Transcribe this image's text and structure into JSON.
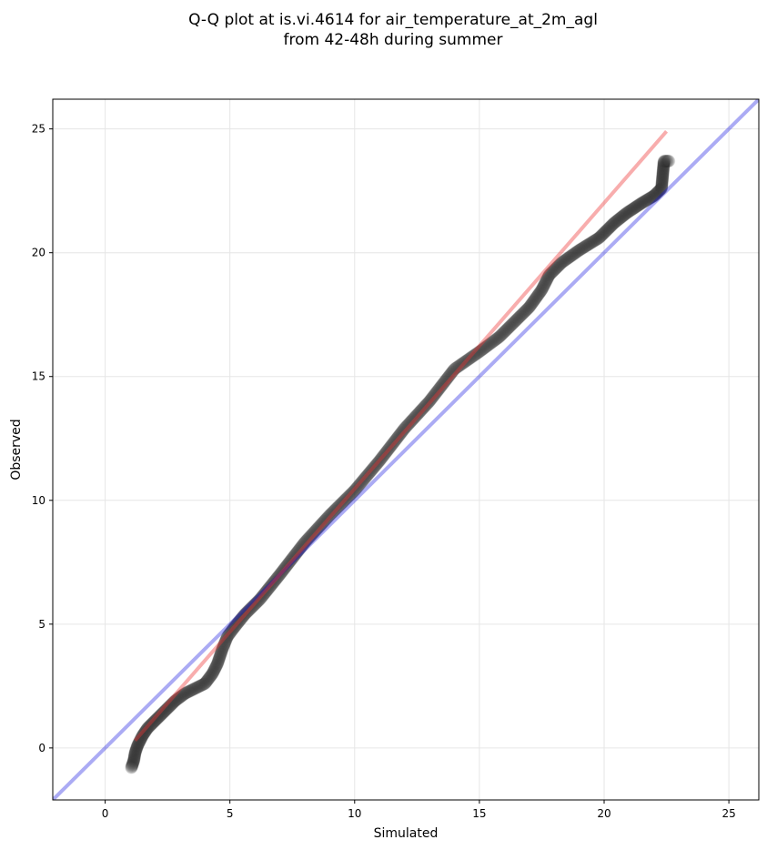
{
  "chart_data": {
    "type": "scatter",
    "title_lines": [
      "Q-Q plot at is.vi.4614 for air_temperature_at_2m_agl",
      "from 42-48h during summer"
    ],
    "xlabel": "Simulated",
    "ylabel": "Observed",
    "xlim": [
      -2.1,
      26.2
    ],
    "ylim": [
      -2.1,
      26.2
    ],
    "xticks": [
      0,
      5,
      10,
      15,
      20,
      25
    ],
    "yticks": [
      0,
      5,
      10,
      15,
      20,
      25
    ],
    "grid": true,
    "reference_line": {
      "name": "1:1",
      "color": "#0000dd",
      "points": [
        [
          -2.1,
          -2.1
        ],
        [
          26.2,
          26.2
        ]
      ]
    },
    "fit_line": {
      "color": "#ee3333",
      "points": [
        [
          1.2,
          0.3
        ],
        [
          22.5,
          24.9
        ]
      ]
    },
    "point_color": "#333333",
    "quantile_curve": [
      [
        1.05,
        -0.8
      ],
      [
        1.15,
        -0.5
      ],
      [
        1.2,
        -0.2
      ],
      [
        1.3,
        0.1
      ],
      [
        1.4,
        0.3
      ],
      [
        1.5,
        0.5
      ],
      [
        1.7,
        0.8
      ],
      [
        1.9,
        1.0
      ],
      [
        2.2,
        1.3
      ],
      [
        2.5,
        1.6
      ],
      [
        2.8,
        1.9
      ],
      [
        3.2,
        2.2
      ],
      [
        3.6,
        2.4
      ],
      [
        4.0,
        2.6
      ],
      [
        4.3,
        3.0
      ],
      [
        4.5,
        3.4
      ],
      [
        4.7,
        4.0
      ],
      [
        4.9,
        4.5
      ],
      [
        5.2,
        4.9
      ],
      [
        5.6,
        5.4
      ],
      [
        6.2,
        6.0
      ],
      [
        7.0,
        7.0
      ],
      [
        8.0,
        8.3
      ],
      [
        9.0,
        9.4
      ],
      [
        10.0,
        10.4
      ],
      [
        11.0,
        11.6
      ],
      [
        12.0,
        12.9
      ],
      [
        13.0,
        14.0
      ],
      [
        14.0,
        15.3
      ],
      [
        15.0,
        16.0
      ],
      [
        15.8,
        16.6
      ],
      [
        16.5,
        17.3
      ],
      [
        17.0,
        17.8
      ],
      [
        17.5,
        18.5
      ],
      [
        17.8,
        19.1
      ],
      [
        18.3,
        19.6
      ],
      [
        19.0,
        20.1
      ],
      [
        19.8,
        20.6
      ],
      [
        20.4,
        21.2
      ],
      [
        20.9,
        21.6
      ],
      [
        21.5,
        22.0
      ],
      [
        22.0,
        22.3
      ],
      [
        22.3,
        22.6
      ],
      [
        22.4,
        23.7
      ],
      [
        22.6,
        23.7
      ]
    ],
    "n_points": 1200
  }
}
